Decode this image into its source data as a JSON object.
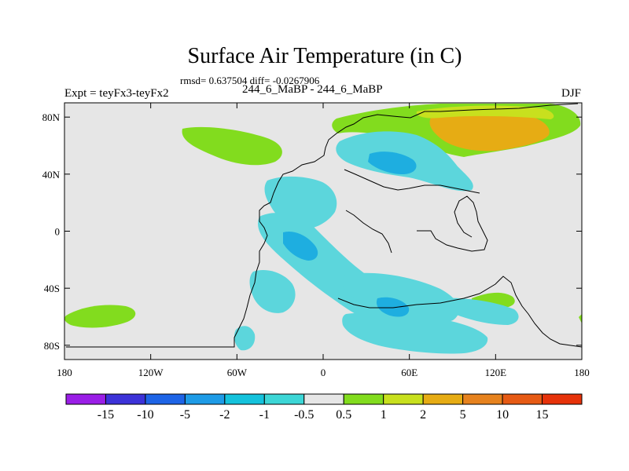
{
  "header": {
    "title": "Surface Air Temperature (in C)",
    "stats": "rmsd= 0.637504 diff= -0.0267906",
    "expt": "Expt = teyFx3-teyFx2",
    "period": "244_6_MaBP - 244_6_MaBP",
    "season": "DJF"
  },
  "map": {
    "lon_range": [
      -180,
      180
    ],
    "lat_range": [
      -90,
      90
    ],
    "x_ticks": [
      {
        "value": -180,
        "label": "180"
      },
      {
        "value": -120,
        "label": "120W"
      },
      {
        "value": -60,
        "label": "60W"
      },
      {
        "value": 0,
        "label": "0"
      },
      {
        "value": 60,
        "label": "60E"
      },
      {
        "value": 120,
        "label": "120E"
      },
      {
        "value": 180,
        "label": "180"
      }
    ],
    "y_ticks": [
      {
        "value": 80,
        "label": "80N"
      },
      {
        "value": 40,
        "label": "40N"
      },
      {
        "value": 0,
        "label": "0"
      },
      {
        "value": -40,
        "label": "40S"
      },
      {
        "value": -80,
        "label": "80S"
      }
    ],
    "background_color": "#e6e6e6"
  },
  "colorbar": {
    "labels": [
      "-15",
      "-10",
      "-5",
      "-2",
      "-1",
      "-0.5",
      "0.5",
      "1",
      "2",
      "5",
      "10",
      "15"
    ],
    "colors": [
      "#9a1ee6",
      "#3c32d8",
      "#1e64e6",
      "#1e9be6",
      "#14c2dc",
      "#3cd6d6",
      "#e6e6e6",
      "#82dc1e",
      "#c8e01e",
      "#e6ac14",
      "#e6821e",
      "#e65a14",
      "#e6320a"
    ]
  }
}
